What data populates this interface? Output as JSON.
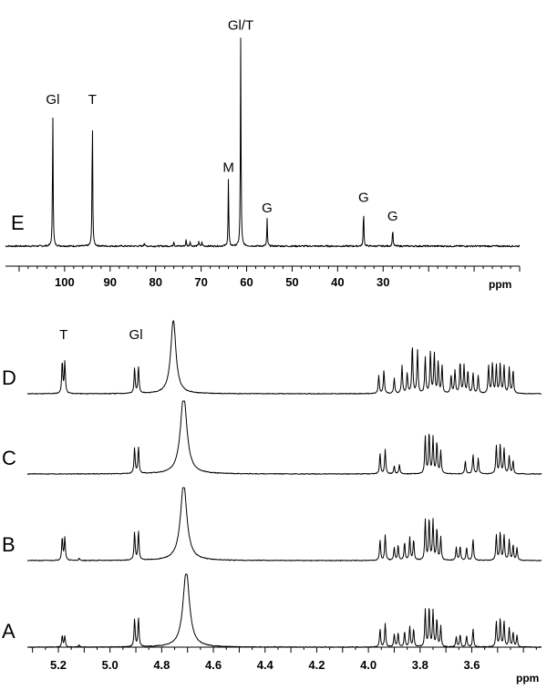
{
  "chart_data": [
    {
      "type": "line",
      "nucleus": "13C",
      "xlim": [
        113,
        0
      ],
      "xlabel": "ppm",
      "x_ticks": [
        100,
        90,
        80,
        70,
        60,
        50,
        40,
        30
      ],
      "series": [
        {
          "name": "E",
          "baseline": 0,
          "peaks": [
            {
              "x": 102.6,
              "height": 1.0,
              "label": "Gl"
            },
            {
              "x": 93.9,
              "height": 1.0,
              "label": "T"
            },
            {
              "x": 82.5,
              "height": 0.03,
              "label": ""
            },
            {
              "x": 76.0,
              "height": 0.04,
              "label": ""
            },
            {
              "x": 73.3,
              "height": 0.05,
              "label": ""
            },
            {
              "x": 72.4,
              "height": 0.04,
              "label": ""
            },
            {
              "x": 70.5,
              "height": 0.04,
              "label": ""
            },
            {
              "x": 69.8,
              "height": 0.03,
              "label": ""
            },
            {
              "x": 64.0,
              "height": 0.5,
              "label": "M"
            },
            {
              "x": 61.3,
              "height": 1.55,
              "label": "Gl/T"
            },
            {
              "x": 55.5,
              "height": 0.2,
              "label": "G"
            },
            {
              "x": 34.3,
              "height": 0.28,
              "label": "G"
            },
            {
              "x": 27.9,
              "height": 0.14,
              "label": "G"
            }
          ]
        }
      ]
    },
    {
      "type": "line",
      "nucleus": "1H",
      "xlim": [
        5.32,
        3.33
      ],
      "xlabel": "ppm",
      "x_ticks": [
        5.2,
        5.0,
        4.8,
        4.6,
        4.4,
        4.2,
        4.0,
        3.8,
        3.6
      ],
      "series": [
        {
          "name": "D",
          "signals": [
            {
              "x": 5.185,
              "height": 0.62,
              "label": "T"
            },
            {
              "x": 5.175,
              "height": 0.62,
              "label": ""
            },
            {
              "x": 4.905,
              "height": 0.5,
              "label": "Gl"
            },
            {
              "x": 4.89,
              "height": 0.52,
              "label": ""
            },
            {
              "x": 4.755,
              "height": 1.45,
              "label": "",
              "width": 0.012
            },
            {
              "x": 3.96,
              "height": 0.35,
              "label": ""
            },
            {
              "x": 3.94,
              "height": 0.45,
              "label": ""
            },
            {
              "x": 3.9,
              "height": 0.3,
              "label": ""
            },
            {
              "x": 3.87,
              "height": 0.55,
              "label": ""
            },
            {
              "x": 3.85,
              "height": 0.4,
              "label": ""
            },
            {
              "x": 3.83,
              "height": 0.95,
              "label": ""
            },
            {
              "x": 3.81,
              "height": 0.85,
              "label": ""
            },
            {
              "x": 3.78,
              "height": 0.7,
              "label": ""
            },
            {
              "x": 3.76,
              "height": 0.82,
              "label": ""
            },
            {
              "x": 3.745,
              "height": 0.78,
              "label": ""
            },
            {
              "x": 3.73,
              "height": 0.62,
              "label": ""
            },
            {
              "x": 3.715,
              "height": 0.55,
              "label": ""
            },
            {
              "x": 3.68,
              "height": 0.35,
              "label": ""
            },
            {
              "x": 3.665,
              "height": 0.45,
              "label": ""
            },
            {
              "x": 3.645,
              "height": 0.62,
              "label": ""
            },
            {
              "x": 3.63,
              "height": 0.55,
              "label": ""
            },
            {
              "x": 3.615,
              "height": 0.45,
              "label": ""
            },
            {
              "x": 3.595,
              "height": 0.4,
              "label": ""
            },
            {
              "x": 3.575,
              "height": 0.35,
              "label": ""
            },
            {
              "x": 3.535,
              "height": 0.55,
              "label": ""
            },
            {
              "x": 3.52,
              "height": 0.6,
              "label": ""
            },
            {
              "x": 3.505,
              "height": 0.55,
              "label": ""
            },
            {
              "x": 3.49,
              "height": 0.58,
              "label": ""
            },
            {
              "x": 3.475,
              "height": 0.55,
              "label": ""
            },
            {
              "x": 3.455,
              "height": 0.5,
              "label": ""
            },
            {
              "x": 3.44,
              "height": 0.45,
              "label": ""
            }
          ]
        },
        {
          "name": "C",
          "signals": [
            {
              "x": 4.905,
              "height": 0.5,
              "label": ""
            },
            {
              "x": 4.89,
              "height": 0.52,
              "label": ""
            },
            {
              "x": 4.715,
              "height": 1.55,
              "label": "",
              "width": 0.015
            },
            {
              "x": 3.955,
              "height": 0.4,
              "label": ""
            },
            {
              "x": 3.935,
              "height": 0.48,
              "label": ""
            },
            {
              "x": 3.9,
              "height": 0.15,
              "label": ""
            },
            {
              "x": 3.88,
              "height": 0.18,
              "label": ""
            },
            {
              "x": 3.78,
              "height": 0.72,
              "label": ""
            },
            {
              "x": 3.765,
              "height": 0.8,
              "label": ""
            },
            {
              "x": 3.75,
              "height": 0.7,
              "label": ""
            },
            {
              "x": 3.735,
              "height": 0.62,
              "label": ""
            },
            {
              "x": 3.72,
              "height": 0.45,
              "label": ""
            },
            {
              "x": 3.625,
              "height": 0.25,
              "label": ""
            },
            {
              "x": 3.595,
              "height": 0.38,
              "label": ""
            },
            {
              "x": 3.575,
              "height": 0.3,
              "label": ""
            },
            {
              "x": 3.505,
              "height": 0.55,
              "label": ""
            },
            {
              "x": 3.49,
              "height": 0.58,
              "label": ""
            },
            {
              "x": 3.475,
              "height": 0.5,
              "label": ""
            },
            {
              "x": 3.455,
              "height": 0.35,
              "label": ""
            },
            {
              "x": 3.44,
              "height": 0.25,
              "label": ""
            }
          ]
        },
        {
          "name": "B",
          "signals": [
            {
              "x": 5.185,
              "height": 0.45,
              "label": ""
            },
            {
              "x": 5.175,
              "height": 0.45,
              "label": ""
            },
            {
              "x": 5.12,
              "height": 0.04,
              "label": ""
            },
            {
              "x": 4.905,
              "height": 0.55,
              "label": ""
            },
            {
              "x": 4.89,
              "height": 0.57,
              "label": ""
            },
            {
              "x": 4.715,
              "height": 1.5,
              "label": "",
              "width": 0.015
            },
            {
              "x": 3.955,
              "height": 0.4,
              "label": ""
            },
            {
              "x": 3.935,
              "height": 0.5,
              "label": ""
            },
            {
              "x": 3.9,
              "height": 0.25,
              "label": ""
            },
            {
              "x": 3.885,
              "height": 0.3,
              "label": ""
            },
            {
              "x": 3.86,
              "height": 0.35,
              "label": ""
            },
            {
              "x": 3.84,
              "height": 0.45,
              "label": ""
            },
            {
              "x": 3.825,
              "height": 0.4,
              "label": ""
            },
            {
              "x": 3.78,
              "height": 0.78,
              "label": ""
            },
            {
              "x": 3.765,
              "height": 0.82,
              "label": ""
            },
            {
              "x": 3.75,
              "height": 0.78,
              "label": ""
            },
            {
              "x": 3.735,
              "height": 0.62,
              "label": ""
            },
            {
              "x": 3.72,
              "height": 0.45,
              "label": ""
            },
            {
              "x": 3.66,
              "height": 0.25,
              "label": ""
            },
            {
              "x": 3.645,
              "height": 0.28,
              "label": ""
            },
            {
              "x": 3.62,
              "height": 0.25,
              "label": ""
            },
            {
              "x": 3.595,
              "height": 0.42,
              "label": ""
            },
            {
              "x": 3.505,
              "height": 0.5,
              "label": ""
            },
            {
              "x": 3.49,
              "height": 0.55,
              "label": ""
            },
            {
              "x": 3.475,
              "height": 0.5,
              "label": ""
            },
            {
              "x": 3.455,
              "height": 0.4,
              "label": ""
            },
            {
              "x": 3.44,
              "height": 0.3,
              "label": ""
            },
            {
              "x": 3.425,
              "height": 0.25,
              "label": ""
            }
          ]
        },
        {
          "name": "A",
          "signals": [
            {
              "x": 5.185,
              "height": 0.22,
              "label": ""
            },
            {
              "x": 5.175,
              "height": 0.22,
              "label": ""
            },
            {
              "x": 5.12,
              "height": 0.04,
              "label": ""
            },
            {
              "x": 4.905,
              "height": 0.55,
              "label": ""
            },
            {
              "x": 4.89,
              "height": 0.57,
              "label": ""
            },
            {
              "x": 4.705,
              "height": 1.5,
              "label": "",
              "width": 0.015
            },
            {
              "x": 3.955,
              "height": 0.35,
              "label": ""
            },
            {
              "x": 3.935,
              "height": 0.45,
              "label": ""
            },
            {
              "x": 3.9,
              "height": 0.25,
              "label": ""
            },
            {
              "x": 3.885,
              "height": 0.28,
              "label": ""
            },
            {
              "x": 3.86,
              "height": 0.3,
              "label": ""
            },
            {
              "x": 3.84,
              "height": 0.4,
              "label": ""
            },
            {
              "x": 3.825,
              "height": 0.35,
              "label": ""
            },
            {
              "x": 3.78,
              "height": 0.72,
              "label": ""
            },
            {
              "x": 3.765,
              "height": 0.78,
              "label": ""
            },
            {
              "x": 3.75,
              "height": 0.7,
              "label": ""
            },
            {
              "x": 3.735,
              "height": 0.55,
              "label": ""
            },
            {
              "x": 3.72,
              "height": 0.4,
              "label": ""
            },
            {
              "x": 3.66,
              "height": 0.2,
              "label": ""
            },
            {
              "x": 3.645,
              "height": 0.25,
              "label": ""
            },
            {
              "x": 3.62,
              "height": 0.22,
              "label": ""
            },
            {
              "x": 3.595,
              "height": 0.35,
              "label": ""
            },
            {
              "x": 3.505,
              "height": 0.5,
              "label": ""
            },
            {
              "x": 3.49,
              "height": 0.55,
              "label": ""
            },
            {
              "x": 3.475,
              "height": 0.5,
              "label": ""
            },
            {
              "x": 3.455,
              "height": 0.38,
              "label": ""
            },
            {
              "x": 3.44,
              "height": 0.28,
              "label": ""
            },
            {
              "x": 3.425,
              "height": 0.22,
              "label": ""
            }
          ]
        }
      ],
      "peak_labels": [
        {
          "text": "T",
          "x": 5.18
        },
        {
          "text": "Gl",
          "x": 4.9
        }
      ]
    }
  ]
}
